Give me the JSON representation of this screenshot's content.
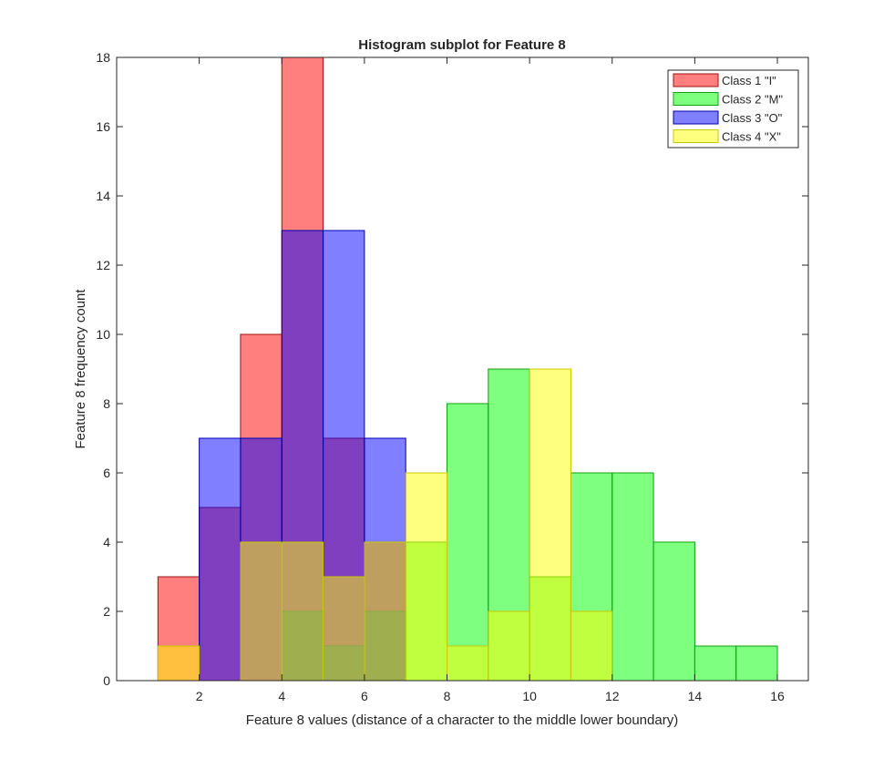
{
  "chart_data": {
    "type": "bar",
    "title": "Histogram subplot for Feature 8",
    "xlabel": "Feature 8 values (distance of a character to the middle lower boundary)",
    "ylabel": "Feature 8 frequency count",
    "xlim": [
      0,
      16.75
    ],
    "ylim": [
      0,
      18
    ],
    "xticks": [
      2,
      4,
      6,
      8,
      10,
      12,
      14,
      16
    ],
    "yticks": [
      0,
      2,
      4,
      6,
      8,
      10,
      12,
      14,
      16,
      18
    ],
    "bin_width": 1,
    "legend_position": "top-right",
    "series": [
      {
        "name": "Class 1 \"I\"",
        "fill": "#ff0000",
        "stroke": "#a01010",
        "bins": [
          {
            "x0": 1,
            "x1": 2,
            "count": 3
          },
          {
            "x0": 2,
            "x1": 3,
            "count": 5
          },
          {
            "x0": 3,
            "x1": 4,
            "count": 10
          },
          {
            "x0": 4,
            "x1": 5,
            "count": 18
          },
          {
            "x0": 5,
            "x1": 6,
            "count": 7
          },
          {
            "x0": 6,
            "x1": 7,
            "count": 4
          }
        ]
      },
      {
        "name": "Class 2 \"M\"",
        "fill": "#00ff00",
        "stroke": "#10a010",
        "bins": [
          {
            "x0": 4,
            "x1": 5,
            "count": 2
          },
          {
            "x0": 5,
            "x1": 6,
            "count": 1
          },
          {
            "x0": 6,
            "x1": 7,
            "count": 2
          },
          {
            "x0": 7,
            "x1": 8,
            "count": 4
          },
          {
            "x0": 8,
            "x1": 9,
            "count": 8
          },
          {
            "x0": 9,
            "x1": 10,
            "count": 9
          },
          {
            "x0": 10,
            "x1": 11,
            "count": 3
          },
          {
            "x0": 11,
            "x1": 12,
            "count": 6
          },
          {
            "x0": 12,
            "x1": 13,
            "count": 6
          },
          {
            "x0": 13,
            "x1": 14,
            "count": 4
          },
          {
            "x0": 14,
            "x1": 15,
            "count": 1
          },
          {
            "x0": 15,
            "x1": 16,
            "count": 1
          }
        ]
      },
      {
        "name": "Class 3 \"O\"",
        "fill": "#0000ff",
        "stroke": "#0000a8",
        "bins": [
          {
            "x0": 2,
            "x1": 3,
            "count": 7
          },
          {
            "x0": 3,
            "x1": 4,
            "count": 7
          },
          {
            "x0": 4,
            "x1": 5,
            "count": 13
          },
          {
            "x0": 5,
            "x1": 6,
            "count": 13
          },
          {
            "x0": 6,
            "x1": 7,
            "count": 7
          }
        ]
      },
      {
        "name": "Class 4 \"X\"",
        "fill": "#ffff00",
        "stroke": "#c8c800",
        "bins": [
          {
            "x0": 1,
            "x1": 2,
            "count": 1
          },
          {
            "x0": 3,
            "x1": 4,
            "count": 4
          },
          {
            "x0": 4,
            "x1": 5,
            "count": 4
          },
          {
            "x0": 5,
            "x1": 6,
            "count": 3
          },
          {
            "x0": 6,
            "x1": 7,
            "count": 4
          },
          {
            "x0": 7,
            "x1": 8,
            "count": 6
          },
          {
            "x0": 8,
            "x1": 9,
            "count": 1
          },
          {
            "x0": 9,
            "x1": 10,
            "count": 2
          },
          {
            "x0": 10,
            "x1": 11,
            "count": 9
          },
          {
            "x0": 11,
            "x1": 12,
            "count": 2
          }
        ]
      }
    ]
  }
}
